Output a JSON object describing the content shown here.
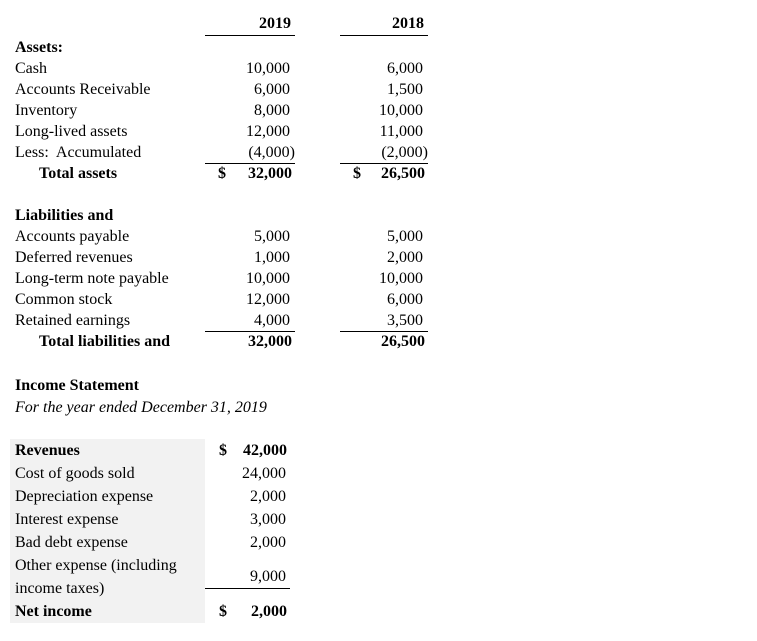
{
  "balance_sheet": {
    "header": {
      "col_2019": "2019",
      "col_2018": "2018"
    },
    "assets": {
      "section_label": "Assets:",
      "rows": [
        {
          "label": "Cash",
          "y2019": "10,000",
          "y2018": "6,000"
        },
        {
          "label": "Accounts Receivable",
          "y2019": "6,000",
          "y2018": "1,500"
        },
        {
          "label": "Inventory",
          "y2019": "8,000",
          "y2018": "10,000"
        },
        {
          "label": "Long-lived assets",
          "y2019": "12,000",
          "y2018": "11,000"
        },
        {
          "label": "Less:  Accumulated",
          "y2019": "(4,000)",
          "y2018": "(2,000)"
        }
      ],
      "total": {
        "label": "Total assets",
        "currency": "$",
        "y2019": "32,000",
        "y2018": "26,500"
      }
    },
    "liabilities": {
      "section_label": "Liabilities and",
      "rows": [
        {
          "label": "Accounts payable",
          "y2019": "5,000",
          "y2018": "5,000"
        },
        {
          "label": "Deferred revenues",
          "y2019": "1,000",
          "y2018": "2,000"
        },
        {
          "label": "Long-term note payable",
          "y2019": "10,000",
          "y2018": "10,000"
        },
        {
          "label": "Common stock",
          "y2019": "12,000",
          "y2018": "6,000"
        },
        {
          "label": "Retained earnings",
          "y2019": "4,000",
          "y2018": "3,500"
        }
      ],
      "total": {
        "label": "Total liabilities and",
        "y2019": "32,000",
        "y2018": "26,500"
      }
    }
  },
  "income_statement": {
    "title": "Income Statement",
    "subtitle": "For the year ended December 31, 2019",
    "label_background": "#f2f2f2",
    "rows": [
      {
        "label": "Revenues",
        "currency": "$",
        "value": "42,000"
      },
      {
        "label": "Cost of goods sold",
        "value": "24,000"
      },
      {
        "label": "Depreciation expense",
        "value": "2,000"
      },
      {
        "label": "Interest expense",
        "value": "3,000"
      },
      {
        "label": "Bad debt expense",
        "value": "2,000"
      },
      {
        "label": "Other expense (including income taxes)",
        "value": "9,000"
      },
      {
        "label": "Net income",
        "currency": "$",
        "value": "2,000"
      }
    ]
  }
}
